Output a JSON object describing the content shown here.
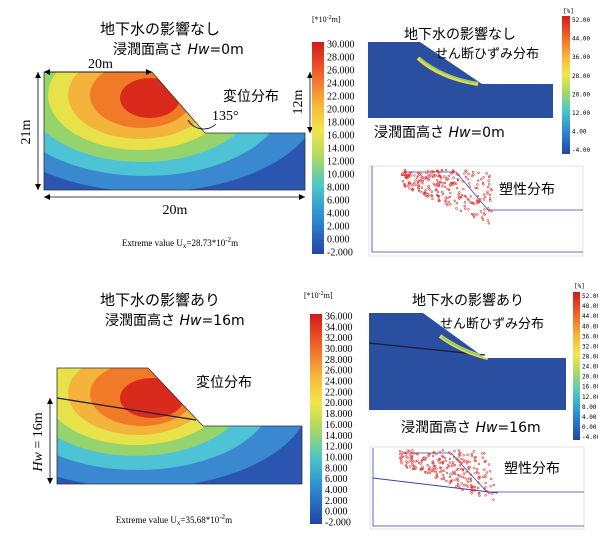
{
  "top": {
    "title_line1": "地下水の影響なし",
    "title_line2": "浸潤面高さ ",
    "hw_symbol": "Hw",
    "hw_value": "=0m",
    "dim_top": "20m",
    "dim_left": "21m",
    "dim_right": "12m",
    "dim_bottom": "20m",
    "angle": "135°",
    "displacement_label": "変位分布",
    "extreme_prefix": "Extreme value U",
    "extreme_sub": "x",
    "extreme_value": "=28.73*10",
    "extreme_exp": "-2",
    "extreme_unit": "m",
    "legend_unit": "[*10",
    "legend_unit_exp": "-2",
    "legend_unit_tail": "m]",
    "legend_ticks": [
      "30.000",
      "28.000",
      "26.000",
      "24.000",
      "22.000",
      "20.000",
      "18.000",
      "16.000",
      "14.000",
      "12.000",
      "10.000",
      "8.000",
      "6.000",
      "4.000",
      "2.000",
      "0.000",
      "-2.000"
    ]
  },
  "top_right": {
    "title": "地下水の影響なし",
    "shear_label": "せん断ひずみ分布",
    "hw_prefix": "浸潤面高さ ",
    "hw_symbol": "Hw",
    "hw_value": "=0m",
    "legend_unit": "[%]",
    "legend_ticks": [
      "52.00",
      "44.00",
      "36.00",
      "28.00",
      "20.00",
      "12.00",
      "4.00",
      "-4.00"
    ],
    "plastic_label": "塑性分布"
  },
  "bottom": {
    "title_line1": "地下水の影響あり",
    "title_line2": "浸潤面高さ ",
    "hw_symbol": "Hw",
    "hw_value": "=16m",
    "dim_left_symbol": "Hw",
    "dim_left_value": " = 16m",
    "displacement_label": "変位分布",
    "extreme_prefix": "Extreme value U",
    "extreme_sub": "x",
    "extreme_value": "=35.68*10",
    "extreme_exp": "-2",
    "extreme_unit": "m",
    "legend_unit": "[*10",
    "legend_unit_exp": "-2",
    "legend_unit_tail": "m]",
    "legend_ticks": [
      "36.000",
      "34.000",
      "32.000",
      "30.000",
      "28.000",
      "26.000",
      "24.000",
      "22.000",
      "20.000",
      "18.000",
      "16.000",
      "14.000",
      "12.000",
      "10.000",
      "8.000",
      "6.000",
      "4.000",
      "2.000",
      "0.000",
      "-2.000"
    ]
  },
  "bottom_right": {
    "title": "地下水の影響あり",
    "shear_label": "せん断ひずみ分布",
    "hw_prefix": "浸潤面高さ ",
    "hw_symbol": "Hw",
    "hw_value": "=16m",
    "legend_unit": "[%]",
    "legend_ticks": [
      "52.00",
      "48.00",
      "44.00",
      "40.00",
      "36.00",
      "32.00",
      "28.00",
      "24.00",
      "20.00",
      "16.00",
      "12.00",
      "8.00",
      "4.00",
      "0.00",
      "-4.00"
    ],
    "plastic_label": "塑性分布"
  },
  "colors": {
    "slope_blue": "#2a4fa0",
    "contour_red": "#d72a1c",
    "contour_orange": "#f07a24",
    "contour_yellow": "#f3d83a",
    "contour_green": "#8fd06a",
    "contour_cyan": "#3fc2d6",
    "plastic_red": "#e23030"
  }
}
